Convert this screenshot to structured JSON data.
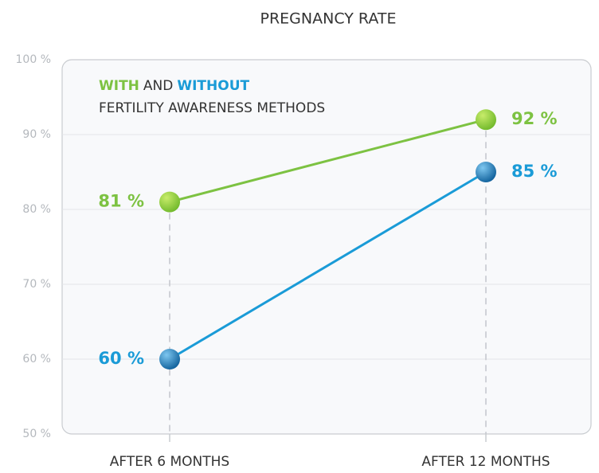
{
  "chart_data": {
    "type": "line",
    "title": "PREGNANCY RATE",
    "categories": [
      "AFTER 6 MONTHS",
      "AFTER 12 MONTHS"
    ],
    "series": [
      {
        "name": "WITH",
        "color": "#7dc242",
        "values": [
          81,
          92
        ],
        "value_labels": [
          "81 %",
          "92 %"
        ]
      },
      {
        "name": "WITHOUT",
        "color": "#1a9bd7",
        "values": [
          60,
          85
        ],
        "value_labels": [
          "60 %",
          "85 %"
        ]
      }
    ],
    "legend_joiner": "AND",
    "legend_caption": "FERTILITY AWARENESS METHODS",
    "ylim": [
      50,
      100
    ],
    "yticks": [
      {
        "value": 50,
        "label": "50 %"
      },
      {
        "value": 60,
        "label": "60 %"
      },
      {
        "value": 70,
        "label": "70 %"
      },
      {
        "value": 80,
        "label": "80 %"
      },
      {
        "value": 90,
        "label": "90 %"
      },
      {
        "value": 100,
        "label": "100 %"
      }
    ],
    "grid": true
  }
}
